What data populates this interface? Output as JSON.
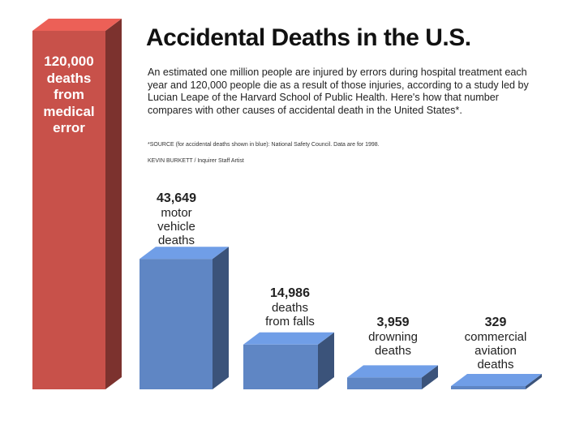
{
  "chart_data": {
    "type": "bar",
    "title": "Accidental Deaths in the U.S.",
    "intro": "An estimated one million people are injured by errors during hospital treatment each year and 120,000 people die as a result of those injuries, according to a study led by Lucian Leape of the Harvard School of Public Health. Here's how that number compares with other causes of accidental death in the United States*.",
    "source": "*SOURCE (for accidental deaths shown in blue): National Safety Council. Data are for 1998.",
    "credit": "KEVIN BURKETT / Inquirer Staff Artist",
    "categories": [
      "medical error",
      "motor vehicle deaths",
      "deaths from falls",
      "drowning deaths",
      "commercial aviation deaths"
    ],
    "values": [
      120000,
      43649,
      14986,
      3959,
      329
    ],
    "colors": [
      "#c8514a",
      "#5f86c4",
      "#5f86c4",
      "#5f86c4",
      "#5f86c4"
    ],
    "ylim": [
      0,
      120000
    ],
    "bars": [
      {
        "value": 120000,
        "label_number": "120,000",
        "label_lines": [
          "deaths",
          "from",
          "medical",
          "error"
        ]
      },
      {
        "value": 43649,
        "label_number": "43,649",
        "label_lines": [
          "motor",
          "vehicle",
          "deaths"
        ]
      },
      {
        "value": 14986,
        "label_number": "14,986",
        "label_lines": [
          "deaths",
          "from falls"
        ]
      },
      {
        "value": 3959,
        "label_number": "3,959",
        "label_lines": [
          "drowning",
          "deaths"
        ]
      },
      {
        "value": 329,
        "label_number": "329",
        "label_lines": [
          "commercial",
          "aviation",
          "deaths"
        ]
      }
    ]
  }
}
